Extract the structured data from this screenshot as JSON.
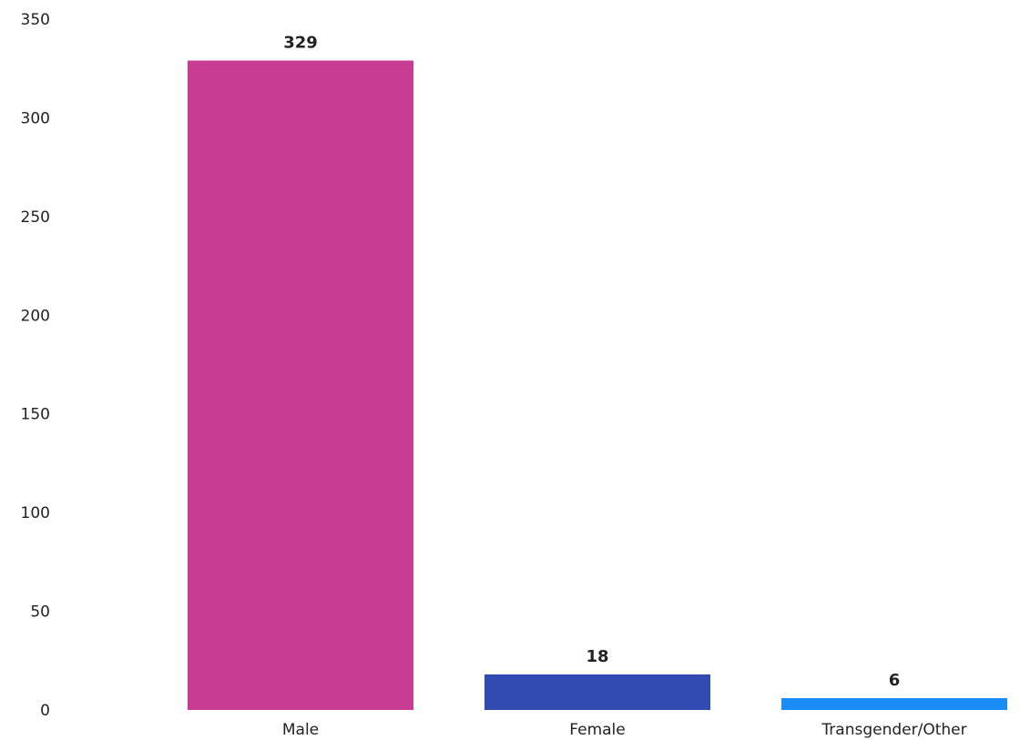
{
  "chart_data": {
    "type": "bar",
    "title": "",
    "xlabel": "",
    "ylabel": "",
    "categories": [
      "Male",
      "Female",
      "Transgender/Other"
    ],
    "values": [
      329,
      18,
      6
    ],
    "data_labels": [
      "329",
      "18",
      "6"
    ],
    "colors": [
      "#c83c93",
      "#324bb0",
      "#1a8cf5"
    ],
    "ylim": [
      0,
      350
    ],
    "yticks": [
      0,
      50,
      100,
      150,
      200,
      250,
      300,
      350
    ],
    "grid": false,
    "legend": "none"
  }
}
